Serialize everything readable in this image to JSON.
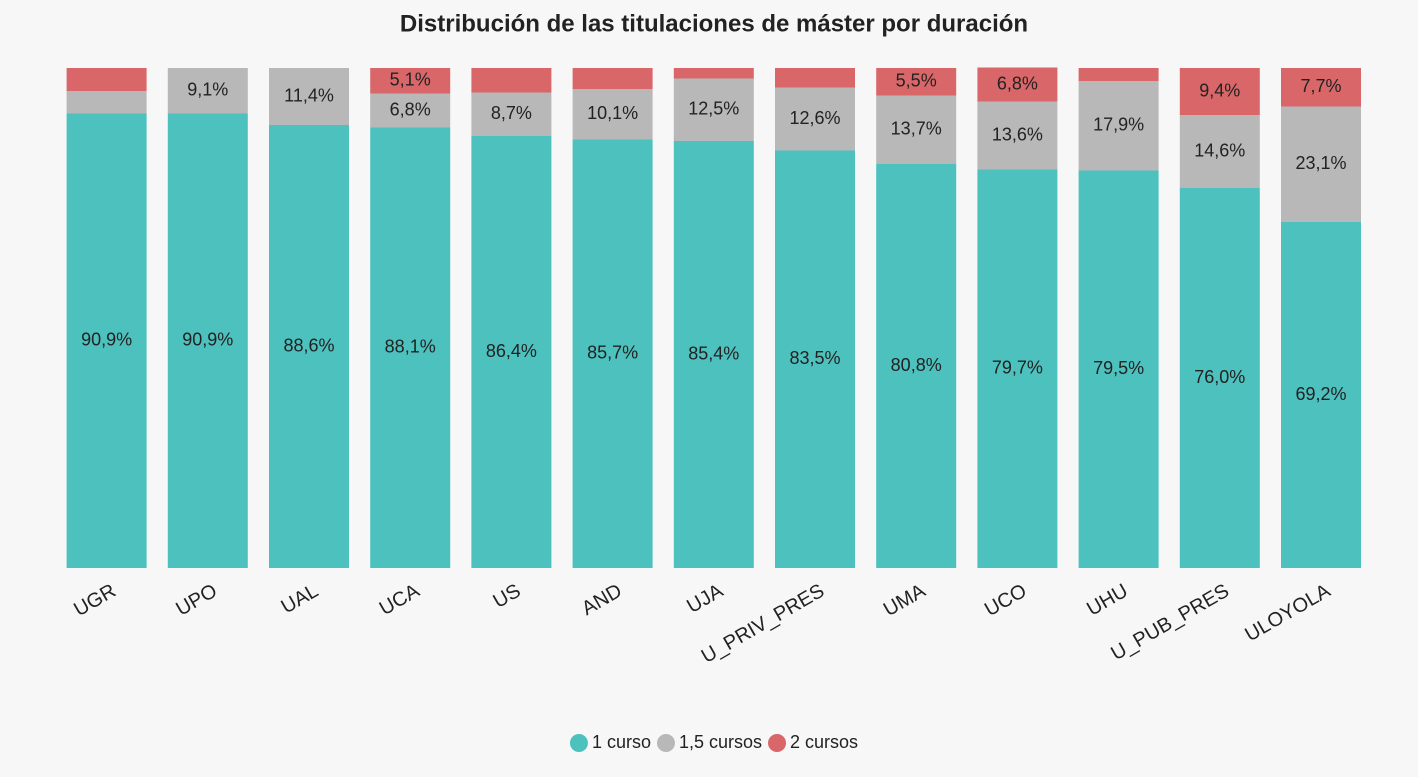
{
  "chart_data": {
    "type": "stacked_bar",
    "title": "Distribución de las titulaciones de máster por duración",
    "categories": [
      "UGR",
      "UPO",
      "UAL",
      "UCA",
      "US",
      "AND",
      "UJA",
      "U_PRIV_PRES",
      "UMA",
      "UCO",
      "UHU",
      "U_PUB_PRES",
      "ULOYOLA"
    ],
    "ylim": [
      0,
      100
    ],
    "series": [
      {
        "name": "1 curso",
        "color": "#4dc1be",
        "values": [
          90.9,
          90.9,
          88.6,
          88.1,
          86.4,
          85.7,
          85.4,
          83.5,
          80.8,
          79.7,
          79.5,
          76.0,
          69.2
        ],
        "value_labels": [
          "90,9%",
          "90,9%",
          "88,6%",
          "88,1%",
          "86,4%",
          "85,7%",
          "85,4%",
          "83,5%",
          "80,8%",
          "79,7%",
          "79,5%",
          "76,0%",
          "69,2%"
        ]
      },
      {
        "name": "1,5 cursos",
        "color": "#b8b8b8",
        "values": [
          4.5,
          9.1,
          11.4,
          6.8,
          8.7,
          10.1,
          12.5,
          12.6,
          13.7,
          13.6,
          17.9,
          14.6,
          23.1
        ],
        "value_labels": [
          null,
          "9,1%",
          "11,4%",
          "6,8%",
          "8,7%",
          "10,1%",
          "12,5%",
          "12,6%",
          "13,7%",
          "13,6%",
          "17,9%",
          "14,6%",
          "23,1%"
        ]
      },
      {
        "name": "2 cursos",
        "color": "#d9676a",
        "values": [
          4.6,
          0,
          0,
          5.1,
          4.9,
          4.2,
          2.1,
          3.9,
          5.5,
          6.8,
          2.6,
          9.4,
          7.7
        ],
        "value_labels": [
          null,
          null,
          null,
          "5,1%",
          null,
          null,
          null,
          null,
          "5,5%",
          "6,8%",
          null,
          "9,4%",
          "7,7%"
        ]
      }
    ]
  }
}
